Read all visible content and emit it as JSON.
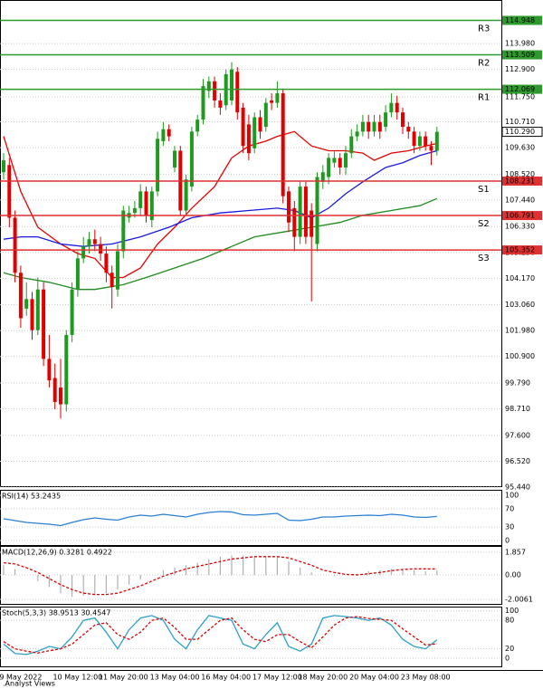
{
  "chart_data": [
    {
      "type": "candlestick",
      "categories": [
        null,
        null,
        null,
        "9 May 2022",
        null,
        null,
        null,
        null,
        null,
        null,
        null,
        null,
        null,
        "10 May 12:00",
        null,
        null,
        null,
        null,
        null,
        null,
        null,
        "11 May 20:00",
        null,
        null,
        null,
        null,
        null,
        null,
        null,
        null,
        "13 May 04:00",
        null,
        null,
        null,
        null,
        null,
        null,
        null,
        null,
        "16 May 04:00",
        null,
        null,
        null,
        null,
        null,
        null,
        null,
        null,
        "17 May 12:00",
        null,
        null,
        null,
        null,
        null,
        null,
        null,
        "18 May 20:00",
        null,
        null,
        null,
        null,
        null,
        null,
        null,
        null,
        "20 May 04:00",
        null,
        null,
        null,
        null,
        null,
        null,
        null,
        null,
        "23 May 08:00",
        null,
        null
      ],
      "open": [
        108.6,
        108.9,
        106.7,
        104.4,
        102.9,
        103.3,
        102.0,
        103.7,
        100.8,
        100.0,
        99.6,
        98.9,
        101.8,
        103.7,
        105.0,
        105.5,
        105.8,
        105.6,
        105.2,
        104.4,
        103.7,
        105.3,
        106.7,
        106.9,
        107.1,
        107.8,
        106.6,
        107.8,
        109.9,
        110.4,
        108.8,
        109.5,
        107.0,
        108.0,
        110.3,
        110.8,
        112.0,
        112.4,
        111.6,
        111.4,
        111.6,
        112.8,
        111.3,
        110.6,
        109.6,
        110.9,
        110.5,
        111.6,
        111.5,
        111.9,
        107.8,
        107.1,
        105.9,
        108.0,
        107.0,
        105.6,
        108.2,
        108.4,
        109.0,
        109.2,
        108.8,
        109.4,
        110.1,
        110.3,
        110.7,
        110.3,
        110.7,
        110.5,
        111.1,
        111.5,
        111.1,
        110.5,
        110.3,
        109.7,
        110.1,
        109.7,
        109.5
      ],
      "high": [
        109.4,
        109.2,
        107.0,
        104.7,
        104.0,
        103.6,
        104.2,
        104.0,
        101.8,
        100.6,
        100.8,
        102.0,
        104.0,
        105.3,
        105.9,
        106.1,
        106.2,
        105.9,
        105.5,
        104.7,
        105.6,
        107.2,
        107.2,
        107.4,
        108.1,
        108.0,
        108.0,
        110.3,
        110.7,
        110.6,
        109.7,
        109.7,
        108.5,
        110.5,
        111.0,
        112.5,
        112.6,
        112.6,
        111.9,
        112.9,
        113.2,
        113.0,
        111.5,
        111.0,
        111.1,
        111.2,
        111.7,
        111.9,
        112.4,
        112.1,
        108.0,
        107.4,
        108.2,
        108.2,
        107.3,
        108.6,
        108.9,
        109.4,
        109.5,
        109.4,
        109.7,
        110.4,
        110.6,
        111.0,
        111.0,
        111.0,
        111.0,
        111.4,
        111.9,
        111.8,
        111.3,
        110.7,
        110.5,
        110.3,
        110.3,
        109.9,
        110.5
      ],
      "low": [
        108.3,
        106.3,
        104.0,
        102.1,
        102.6,
        101.6,
        101.8,
        100.5,
        99.6,
        98.7,
        98.3,
        98.6,
        101.5,
        103.4,
        104.8,
        105.2,
        105.3,
        104.9,
        104.0,
        102.9,
        103.4,
        105.0,
        106.5,
        106.7,
        106.8,
        106.5,
        106.3,
        107.6,
        109.7,
        109.9,
        108.6,
        106.8,
        106.8,
        107.8,
        110.1,
        110.6,
        111.7,
        111.3,
        111.0,
        111.2,
        111.4,
        110.8,
        109.4,
        109.1,
        109.4,
        110.0,
        110.3,
        111.2,
        111.3,
        107.3,
        106.1,
        105.3,
        105.6,
        105.6,
        103.2,
        105.3,
        107.9,
        108.1,
        108.8,
        108.5,
        108.5,
        109.2,
        109.9,
        110.1,
        110.0,
        110.1,
        110.0,
        110.3,
        110.9,
        110.8,
        110.2,
        110.0,
        109.4,
        109.5,
        109.5,
        108.9,
        109.3
      ],
      "close": [
        109.1,
        106.7,
        104.4,
        102.5,
        103.3,
        102.0,
        103.7,
        100.8,
        99.9,
        99.0,
        98.9,
        101.8,
        103.7,
        105.0,
        105.5,
        105.8,
        105.6,
        105.2,
        104.4,
        103.8,
        105.3,
        107.0,
        106.9,
        107.1,
        107.8,
        106.8,
        107.8,
        110.0,
        110.4,
        110.1,
        109.5,
        107.0,
        108.3,
        110.3,
        110.8,
        112.2,
        112.4,
        111.6,
        111.3,
        112.7,
        112.9,
        111.1,
        109.7,
        109.4,
        110.9,
        110.3,
        111.5,
        111.5,
        111.9,
        107.6,
        106.5,
        105.9,
        108.0,
        105.9,
        105.9,
        108.4,
        108.6,
        109.2,
        109.2,
        108.8,
        109.4,
        110.1,
        110.3,
        110.7,
        110.3,
        110.7,
        110.3,
        111.1,
        111.5,
        111.1,
        110.5,
        110.3,
        109.7,
        110.1,
        109.7,
        109.5,
        110.29
      ],
      "up_color": "#1e9a1e",
      "down_color": "#e00000",
      "ylim": [
        95.44,
        115.8
      ],
      "yticks": [
        {
          "value": 113.98,
          "label": "113.980"
        },
        {
          "value": 112.9,
          "label": "112.900"
        },
        {
          "value": 111.75,
          "label": "111.750"
        },
        {
          "value": 110.71,
          "label": "110.710"
        },
        {
          "value": 109.63,
          "label": "109.630"
        },
        {
          "value": 108.52,
          "label": "108.520"
        },
        {
          "value": 107.44,
          "label": "107.440"
        },
        {
          "value": 106.33,
          "label": "106.330"
        },
        {
          "value": 105.25,
          "label": "105.250"
        },
        {
          "value": 104.17,
          "label": "104.170"
        },
        {
          "value": 103.06,
          "label": "103.060"
        },
        {
          "value": 101.98,
          "label": "101.980"
        },
        {
          "value": 100.9,
          "label": "100.900"
        },
        {
          "value": 99.79,
          "label": "99.790"
        },
        {
          "value": 98.71,
          "label": "98.710"
        },
        {
          "value": 97.6,
          "label": "97.600"
        },
        {
          "value": 96.52,
          "label": "96.520"
        },
        {
          "value": 95.44,
          "label": "95.440"
        }
      ],
      "grid": true,
      "levels": [
        {
          "name": "R3",
          "value": 114.948,
          "color": "#2e9a2e"
        },
        {
          "name": "R2",
          "value": 113.509,
          "color": "#2e9a2e"
        },
        {
          "name": "R1",
          "value": 112.069,
          "color": "#2e9a2e"
        },
        {
          "name": "S1",
          "value": 108.231,
          "color": "#e03030"
        },
        {
          "name": "S2",
          "value": 106.791,
          "color": "#e03030"
        },
        {
          "name": "S3",
          "value": 105.352,
          "color": "#e03030"
        }
      ],
      "last_price": {
        "value": 110.29,
        "label": "110.290"
      },
      "series": [
        {
          "color": "#e60000",
          "x": [
            0,
            3,
            6,
            10,
            13,
            16,
            19,
            21,
            24,
            27,
            30,
            33,
            37,
            40,
            43,
            46,
            48,
            51,
            54,
            57,
            60,
            63,
            65,
            68,
            71,
            74,
            76
          ],
          "values": [
            110.1,
            107.8,
            106.3,
            105.6,
            105.2,
            105.0,
            104.2,
            104.2,
            104.6,
            105.6,
            106.3,
            107.1,
            108.0,
            109.2,
            109.7,
            109.9,
            110.1,
            110.3,
            109.7,
            109.5,
            109.5,
            109.4,
            109.1,
            109.4,
            109.5,
            109.7,
            109.8
          ]
        },
        {
          "color": "#1a1ae0",
          "x": [
            0,
            3,
            6,
            10,
            14,
            19,
            24,
            29,
            33,
            38,
            43,
            48,
            51,
            54,
            57,
            60,
            63,
            67,
            70,
            73,
            76
          ],
          "values": [
            105.8,
            105.9,
            105.9,
            105.6,
            105.5,
            105.6,
            105.9,
            106.3,
            106.7,
            106.9,
            107.0,
            107.1,
            107.0,
            106.7,
            107.1,
            107.7,
            108.2,
            108.8,
            109.0,
            109.3,
            109.5
          ]
        },
        {
          "color": "#1e8c1e",
          "x": [
            0,
            3,
            8,
            13,
            16,
            21,
            25,
            30,
            35,
            40,
            44,
            49,
            54,
            59,
            63,
            68,
            73,
            76
          ],
          "values": [
            104.4,
            104.2,
            104.0,
            103.7,
            103.7,
            103.9,
            104.2,
            104.6,
            105.0,
            105.5,
            105.9,
            106.1,
            106.3,
            106.5,
            106.8,
            107.0,
            107.2,
            107.5
          ]
        }
      ]
    },
    {
      "type": "line",
      "title": "RSI(14) 53.2435",
      "ylim": [
        -12,
        112
      ],
      "yticks": [
        100,
        70,
        30,
        0
      ],
      "grid": true,
      "series": [
        {
          "color": "#2a7fd4",
          "x": [
            0,
            2,
            4,
            6,
            8,
            10,
            12,
            14,
            16,
            18,
            20,
            22,
            24,
            26,
            28,
            30,
            32,
            34,
            36,
            38,
            40,
            42,
            44,
            46,
            48,
            50,
            52,
            54,
            56,
            58,
            60,
            62,
            64,
            66,
            68,
            70,
            72,
            74,
            76
          ],
          "values": [
            48,
            44,
            40,
            38,
            36,
            33,
            40,
            46,
            50,
            47,
            45,
            52,
            56,
            54,
            58,
            55,
            52,
            58,
            62,
            64,
            63,
            57,
            56,
            58,
            60,
            45,
            44,
            47,
            52,
            52,
            54,
            55,
            56,
            55,
            58,
            56,
            52,
            51,
            53.24
          ]
        }
      ]
    },
    {
      "type": "bar",
      "title": "MACD(12,26,9) 0.3281 0.4922",
      "ylim": [
        -2.45,
        2.38
      ],
      "yticks": [
        1.857,
        {
          "value": 0,
          "label": "0.00"
        },
        -2.0061
      ],
      "grid": true,
      "series": [
        {
          "kind": "bar",
          "color": "#b0b0b0",
          "x": [
            0,
            2,
            4,
            6,
            8,
            10,
            12,
            14,
            16,
            18,
            20,
            22,
            24,
            26,
            28,
            30,
            32,
            34,
            36,
            38,
            40,
            42,
            44,
            46,
            48,
            50,
            52,
            54,
            56,
            58,
            60,
            62,
            64,
            66,
            68,
            70,
            72,
            74,
            76
          ],
          "values": [
            0.8,
            0.5,
            0.0,
            -0.5,
            -1.0,
            -1.5,
            -1.8,
            -1.7,
            -1.6,
            -1.5,
            -1.2,
            -0.8,
            -0.4,
            0.0,
            0.4,
            0.6,
            0.8,
            1.0,
            1.3,
            1.5,
            1.6,
            1.6,
            1.5,
            1.5,
            1.5,
            1.1,
            0.6,
            0.2,
            0.0,
            -0.1,
            0.0,
            0.1,
            0.3,
            0.4,
            0.5,
            0.5,
            0.4,
            0.3,
            0.33
          ]
        },
        {
          "kind": "line",
          "dashed": true,
          "color": "#e00000",
          "x": [
            0,
            2,
            4,
            6,
            8,
            10,
            12,
            14,
            16,
            18,
            20,
            22,
            24,
            26,
            28,
            30,
            32,
            34,
            36,
            38,
            40,
            42,
            44,
            46,
            48,
            50,
            52,
            54,
            56,
            58,
            60,
            62,
            64,
            66,
            68,
            70,
            72,
            74,
            76
          ],
          "values": [
            1.0,
            0.9,
            0.6,
            0.2,
            -0.3,
            -0.8,
            -1.2,
            -1.5,
            -1.6,
            -1.6,
            -1.5,
            -1.2,
            -0.9,
            -0.5,
            -0.1,
            0.2,
            0.5,
            0.7,
            0.9,
            1.1,
            1.3,
            1.4,
            1.5,
            1.5,
            1.5,
            1.4,
            1.1,
            0.8,
            0.4,
            0.2,
            0.05,
            0.0,
            0.1,
            0.2,
            0.35,
            0.45,
            0.5,
            0.5,
            0.49
          ]
        }
      ]
    },
    {
      "type": "line",
      "title": "Stoch(5,3,3) 38.9513 30.4547",
      "ylim": [
        -19,
        109
      ],
      "yticks": [
        100,
        80,
        20,
        0
      ],
      "grid": true,
      "series": [
        {
          "color": "#2aa0c8",
          "x": [
            0,
            2,
            4,
            6,
            8,
            10,
            12,
            14,
            16,
            18,
            20,
            22,
            24,
            26,
            28,
            30,
            32,
            34,
            36,
            38,
            40,
            42,
            44,
            46,
            48,
            50,
            52,
            54,
            56,
            58,
            60,
            62,
            64,
            66,
            68,
            70,
            72,
            74,
            76
          ],
          "values": [
            30,
            10,
            8,
            15,
            25,
            20,
            45,
            80,
            85,
            55,
            20,
            60,
            85,
            90,
            80,
            40,
            20,
            60,
            90,
            85,
            80,
            30,
            20,
            50,
            75,
            25,
            15,
            30,
            85,
            90,
            88,
            85,
            80,
            85,
            70,
            40,
            25,
            20,
            38.95
          ]
        },
        {
          "dashed": true,
          "color": "#e00000",
          "x": [
            0,
            2,
            4,
            6,
            8,
            10,
            12,
            14,
            16,
            18,
            20,
            22,
            24,
            26,
            28,
            30,
            32,
            34,
            36,
            38,
            40,
            42,
            44,
            46,
            48,
            50,
            52,
            54,
            56,
            58,
            60,
            62,
            64,
            66,
            68,
            70,
            72,
            74,
            76
          ],
          "values": [
            35,
            20,
            15,
            11,
            16,
            20,
            30,
            50,
            70,
            75,
            50,
            40,
            55,
            80,
            85,
            65,
            40,
            40,
            60,
            80,
            85,
            60,
            40,
            35,
            50,
            50,
            35,
            22,
            45,
            70,
            85,
            88,
            84,
            82,
            80,
            62,
            45,
            28,
            30.45
          ]
        }
      ]
    }
  ],
  "footer": ".Analyst Views"
}
